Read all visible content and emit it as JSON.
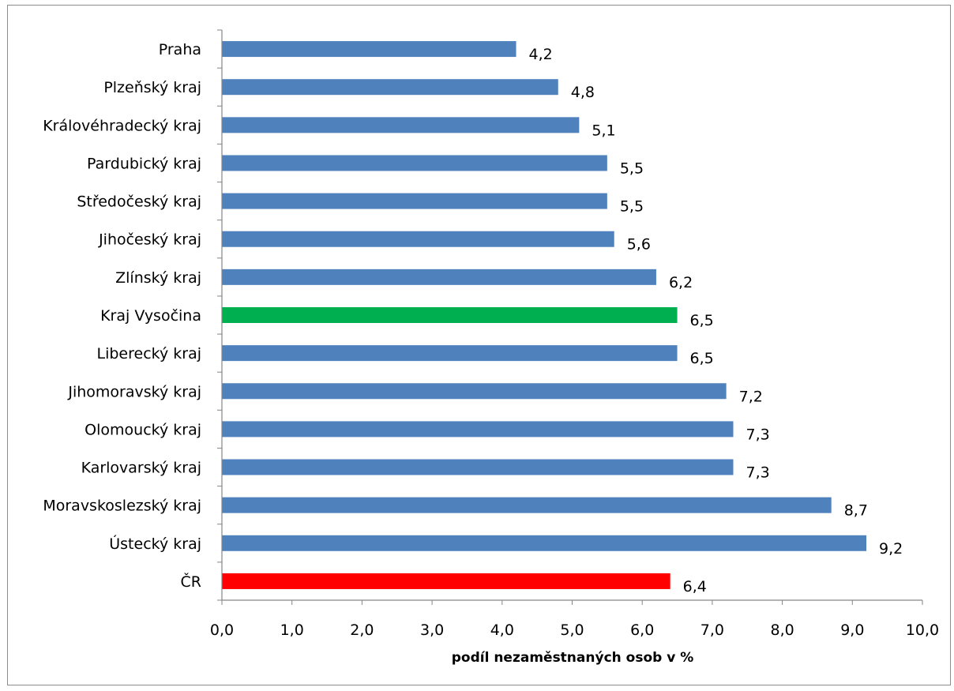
{
  "chart_data": {
    "type": "bar",
    "orientation": "horizontal",
    "title": "",
    "xlabel": "podíl nezaměstnaných osob v %",
    "ylabel": "",
    "xlim": [
      0,
      10
    ],
    "x_tick_labels": [
      "0,0",
      "1,0",
      "2,0",
      "3,0",
      "4,0",
      "5,0",
      "6,0",
      "7,0",
      "8,0",
      "9,0",
      "10,0"
    ],
    "grid": false,
    "legend": "none",
    "categories": [
      "Praha",
      "Plzeňský kraj",
      "Královéhradecký kraj",
      "Pardubický kraj",
      "Středočeský kraj",
      "Jihočeský kraj",
      "Zlínský kraj",
      "Kraj Vysočina",
      "Liberecký kraj",
      "Jihomoravský kraj",
      "Olomoucký kraj",
      "Karlovarský kraj",
      "Moravskoslezský kraj",
      "Ústecký kraj",
      "ČR"
    ],
    "values": [
      4.2,
      4.8,
      5.1,
      5.5,
      5.5,
      5.6,
      6.2,
      6.5,
      6.5,
      7.2,
      7.3,
      7.3,
      8.7,
      9.2,
      6.4
    ],
    "value_labels": [
      "4,2",
      "4,8",
      "5,1",
      "5,5",
      "5,5",
      "5,6",
      "6,2",
      "6,5",
      "6,5",
      "7,2",
      "7,3",
      "7,3",
      "8,7",
      "9,2",
      "6,4"
    ],
    "colors": [
      "#4f81bd",
      "#4f81bd",
      "#4f81bd",
      "#4f81bd",
      "#4f81bd",
      "#4f81bd",
      "#4f81bd",
      "#00b050",
      "#4f81bd",
      "#4f81bd",
      "#4f81bd",
      "#4f81bd",
      "#4f81bd",
      "#4f81bd",
      "#ff0000"
    ]
  }
}
